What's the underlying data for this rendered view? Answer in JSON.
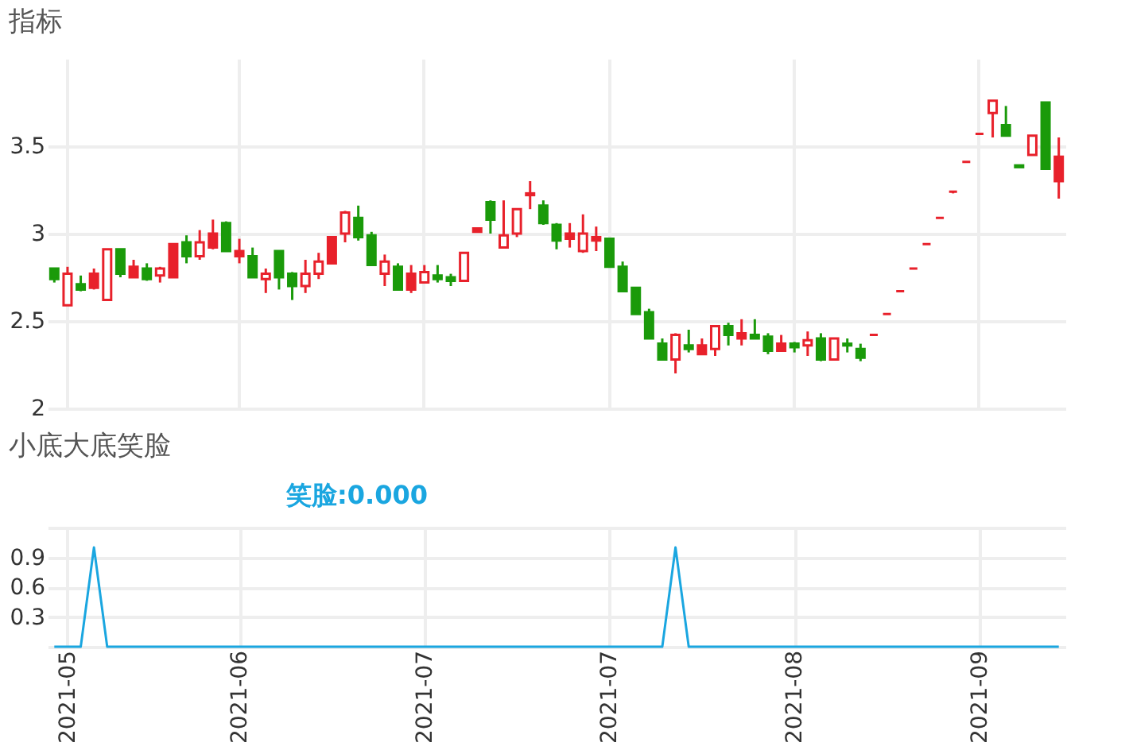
{
  "chart_data": [
    {
      "type": "candlestick",
      "title": "指标",
      "categories": [
        null,
        "2021-05",
        null,
        null,
        null,
        null,
        null,
        null,
        null,
        null,
        null,
        null,
        null,
        null,
        "2021-06",
        null,
        null,
        null,
        null,
        null,
        null,
        null,
        null,
        null,
        null,
        null,
        null,
        null,
        "2021-07",
        null,
        null,
        null,
        null,
        null,
        null,
        null,
        null,
        null,
        null,
        null,
        null,
        null,
        "2021-07",
        null,
        null,
        null,
        null,
        null,
        null,
        null,
        null,
        null,
        null,
        null,
        null,
        null,
        "2021-08",
        null,
        null,
        null,
        null,
        null,
        null,
        null,
        null,
        null,
        null,
        null,
        null,
        null,
        "2021-09",
        null,
        null,
        null,
        null,
        null,
        null
      ],
      "ohlc": [
        [
          2.8,
          2.8,
          2.72,
          2.74
        ],
        [
          2.59,
          2.81,
          2.59,
          2.77
        ],
        [
          2.71,
          2.76,
          2.67,
          2.68
        ],
        [
          2.77,
          2.8,
          2.68,
          2.69
        ],
        [
          2.62,
          2.91,
          2.62,
          2.91
        ],
        [
          2.91,
          2.91,
          2.75,
          2.77
        ],
        [
          2.81,
          2.85,
          2.75,
          2.75
        ],
        [
          2.8,
          2.83,
          2.73,
          2.74
        ],
        [
          2.76,
          2.81,
          2.72,
          2.8
        ],
        [
          2.94,
          2.94,
          2.75,
          2.75
        ],
        [
          2.95,
          2.99,
          2.83,
          2.87
        ],
        [
          2.87,
          3.02,
          2.85,
          2.95
        ],
        [
          3.0,
          3.08,
          2.91,
          2.92
        ],
        [
          3.06,
          3.07,
          2.9,
          2.9
        ],
        [
          2.9,
          2.97,
          2.83,
          2.87
        ],
        [
          2.87,
          2.92,
          2.75,
          2.75
        ],
        [
          2.74,
          2.8,
          2.66,
          2.77
        ],
        [
          2.9,
          2.9,
          2.68,
          2.75
        ],
        [
          2.77,
          2.78,
          2.62,
          2.7
        ],
        [
          2.7,
          2.85,
          2.66,
          2.77
        ],
        [
          2.77,
          2.89,
          2.74,
          2.84
        ],
        [
          2.98,
          2.98,
          2.83,
          2.83
        ],
        [
          3.0,
          3.13,
          2.95,
          3.12
        ],
        [
          3.09,
          3.16,
          2.96,
          2.98
        ],
        [
          2.99,
          3.01,
          2.82,
          2.82
        ],
        [
          2.77,
          2.88,
          2.7,
          2.84
        ],
        [
          2.81,
          2.83,
          2.68,
          2.68
        ],
        [
          2.77,
          2.82,
          2.66,
          2.68
        ],
        [
          2.72,
          2.82,
          2.72,
          2.78
        ],
        [
          2.76,
          2.82,
          2.72,
          2.74
        ],
        [
          2.75,
          2.77,
          2.7,
          2.73
        ],
        [
          2.73,
          2.89,
          2.73,
          2.89
        ],
        [
          3.03,
          3.03,
          3.01,
          3.01
        ],
        [
          3.18,
          3.19,
          3.0,
          3.08
        ],
        [
          2.92,
          3.19,
          2.92,
          2.99
        ],
        [
          3.0,
          3.14,
          2.98,
          3.14
        ],
        [
          3.23,
          3.3,
          3.14,
          3.22
        ],
        [
          3.16,
          3.19,
          3.05,
          3.06
        ],
        [
          3.05,
          3.06,
          2.91,
          2.96
        ],
        [
          3.0,
          3.06,
          2.92,
          2.97
        ],
        [
          2.9,
          3.11,
          2.89,
          3.0
        ],
        [
          2.98,
          3.04,
          2.9,
          2.96
        ],
        [
          2.97,
          2.97,
          2.81,
          2.81
        ],
        [
          2.81,
          2.84,
          2.67,
          2.67
        ],
        [
          2.69,
          2.69,
          2.54,
          2.54
        ],
        [
          2.55,
          2.57,
          2.4,
          2.4
        ],
        [
          2.37,
          2.4,
          2.28,
          2.28
        ],
        [
          2.28,
          2.43,
          2.2,
          2.42
        ],
        [
          2.36,
          2.45,
          2.32,
          2.34
        ],
        [
          2.36,
          2.4,
          2.31,
          2.31
        ],
        [
          2.34,
          2.47,
          2.3,
          2.47
        ],
        [
          2.47,
          2.49,
          2.36,
          2.42
        ],
        [
          2.43,
          2.51,
          2.36,
          2.4
        ],
        [
          2.42,
          2.51,
          2.4,
          2.4
        ],
        [
          2.41,
          2.43,
          2.31,
          2.33
        ],
        [
          2.37,
          2.42,
          2.33,
          2.33
        ],
        [
          2.37,
          2.38,
          2.32,
          2.35
        ],
        [
          2.36,
          2.44,
          2.3,
          2.39
        ],
        [
          2.4,
          2.43,
          2.27,
          2.28
        ],
        [
          2.28,
          2.4,
          2.28,
          2.4
        ],
        [
          2.37,
          2.4,
          2.32,
          2.36
        ],
        [
          2.34,
          2.37,
          2.27,
          2.29
        ],
        [
          2.42,
          2.42,
          2.42,
          2.42
        ],
        [
          2.54,
          2.54,
          2.54,
          2.54
        ],
        [
          2.67,
          2.67,
          2.67,
          2.67
        ],
        [
          2.8,
          2.8,
          2.8,
          2.8
        ],
        [
          2.94,
          2.94,
          2.94,
          2.94
        ],
        [
          3.09,
          3.09,
          3.09,
          3.09
        ],
        [
          3.24,
          3.24,
          3.23,
          3.24
        ],
        [
          3.41,
          3.41,
          3.41,
          3.41
        ],
        [
          3.57,
          3.57,
          3.57,
          3.57
        ],
        [
          3.69,
          3.76,
          3.55,
          3.76
        ],
        [
          3.62,
          3.73,
          3.56,
          3.56
        ],
        [
          3.39,
          3.39,
          3.38,
          3.38
        ],
        [
          3.45,
          3.56,
          3.45,
          3.56
        ],
        [
          3.75,
          3.75,
          3.37,
          3.37
        ],
        [
          3.44,
          3.55,
          3.2,
          3.3
        ]
      ],
      "colors": [
        "#1a9a0a",
        "#e8212b",
        "#1a9a0a",
        "#e8212b",
        "#e8212b",
        "#1a9a0a",
        "#e8212b",
        "#1a9a0a",
        "#e8212b",
        "#e8212b",
        "#1a9a0a",
        "#e8212b",
        "#e8212b",
        "#1a9a0a",
        "#e8212b",
        "#1a9a0a",
        "#e8212b",
        "#1a9a0a",
        "#1a9a0a",
        "#e8212b",
        "#e8212b",
        "#e8212b",
        "#e8212b",
        "#1a9a0a",
        "#1a9a0a",
        "#e8212b",
        "#1a9a0a",
        "#e8212b",
        "#e8212b",
        "#1a9a0a",
        "#1a9a0a",
        "#e8212b",
        "#e8212b",
        "#1a9a0a",
        "#e8212b",
        "#e8212b",
        "#e8212b",
        "#1a9a0a",
        "#1a9a0a",
        "#e8212b",
        "#e8212b",
        "#e8212b",
        "#1a9a0a",
        "#1a9a0a",
        "#1a9a0a",
        "#1a9a0a",
        "#1a9a0a",
        "#e8212b",
        "#1a9a0a",
        "#e8212b",
        "#e8212b",
        "#1a9a0a",
        "#e8212b",
        "#1a9a0a",
        "#1a9a0a",
        "#e8212b",
        "#1a9a0a",
        "#e8212b",
        "#1a9a0a",
        "#e8212b",
        "#1a9a0a",
        "#1a9a0a",
        "#e8212b",
        "#e8212b",
        "#e8212b",
        "#e8212b",
        "#e8212b",
        "#e8212b",
        "#e8212b",
        "#e8212b",
        "#e8212b",
        "#e8212b",
        "#1a9a0a",
        "#1a9a0a",
        "#e8212b",
        "#1a9a0a",
        "#e8212b"
      ],
      "ylim": [
        2,
        4
      ],
      "yticks": [
        2,
        2.5,
        3,
        3.5
      ],
      "grid": true,
      "tick_labels": "y"
    },
    {
      "type": "line",
      "title": "小底大底笑脸",
      "categories": [
        null,
        "2021-05",
        null,
        null,
        null,
        null,
        null,
        null,
        null,
        null,
        null,
        null,
        null,
        null,
        "2021-06",
        null,
        null,
        null,
        null,
        null,
        null,
        null,
        null,
        null,
        null,
        null,
        null,
        null,
        "2021-07",
        null,
        null,
        null,
        null,
        null,
        null,
        null,
        null,
        null,
        null,
        null,
        null,
        null,
        "2021-07",
        null,
        null,
        null,
        null,
        null,
        null,
        null,
        null,
        null,
        null,
        null,
        null,
        null,
        "2021-08",
        null,
        null,
        null,
        null,
        null,
        null,
        null,
        null,
        null,
        null,
        null,
        null,
        null,
        "2021-09",
        null,
        null,
        null,
        null,
        null,
        null
      ],
      "series": [
        {
          "name": "笑脸:0.000",
          "color": "#1aa6e0",
          "values": [
            0,
            0,
            0,
            1,
            0,
            0,
            0,
            0,
            0,
            0,
            0,
            0,
            0,
            0,
            0,
            0,
            0,
            0,
            0,
            0,
            0,
            0,
            0,
            0,
            0,
            0,
            0,
            0,
            0,
            0,
            0,
            0,
            0,
            0,
            0,
            0,
            0,
            0,
            0,
            0,
            0,
            0,
            0,
            0,
            0,
            0,
            0,
            1,
            0,
            0,
            0,
            0,
            0,
            0,
            0,
            0,
            0,
            0,
            0,
            0,
            0,
            0,
            0,
            0,
            0,
            0,
            0,
            0,
            0,
            0,
            0,
            0,
            0,
            0,
            0,
            0,
            0
          ]
        }
      ],
      "ylim": [
        0,
        1.2
      ],
      "yticks": [
        {
          "value": 0,
          "label": null
        },
        0.3,
        0.6,
        0.9,
        {
          "value": 1.2,
          "label": null
        }
      ],
      "grid": true
    }
  ]
}
